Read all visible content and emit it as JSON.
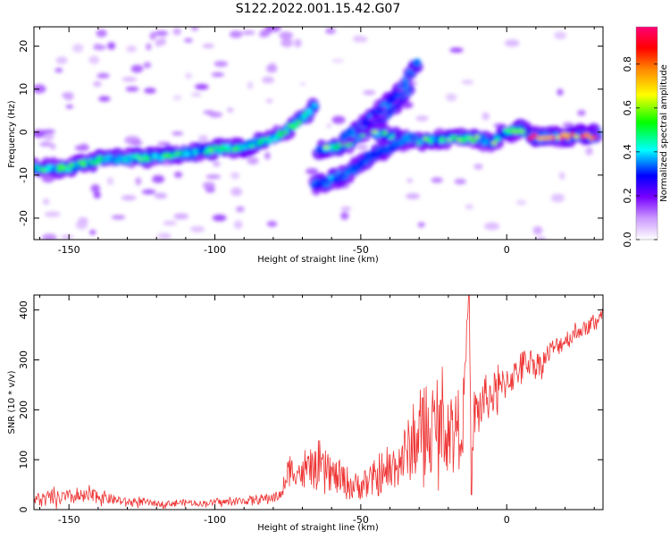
{
  "title": "S122.2022.001.15.42.G07",
  "chart_data": [
    {
      "type": "heatmap",
      "xlabel": "Height of straight line (km)",
      "ylabel": "Frequency (Hz)",
      "xlim": [
        -162,
        33
      ],
      "ylim": [
        -25,
        24.5
      ],
      "xticks": [
        -150,
        -100,
        -50,
        0
      ],
      "xtick_labels": [
        "-150",
        "-100",
        "-50",
        "0"
      ],
      "yticks": [
        -20,
        -10,
        0,
        10,
        20
      ],
      "ytick_labels": [
        "-20",
        "-10",
        "0",
        "10",
        "20"
      ],
      "colorbar": {
        "label": "Normalized spectral amplitude",
        "range": [
          0.0,
          0.97
        ],
        "ticks": [
          0.0,
          0.2,
          0.4,
          0.6,
          0.8
        ],
        "tick_labels": [
          "0.0",
          "0.2",
          "0.4",
          "0.6",
          "0.8"
        ],
        "colors": [
          "#ffffff",
          "#cc99ff",
          "#7700ff",
          "#0000ff",
          "#00ffff",
          "#00ff00",
          "#ffff00",
          "#ff8800",
          "#ff0000",
          "#ff0077"
        ]
      },
      "ridges": [
        {
          "x": [
            -162,
            -150,
            -140,
            -125,
            -110,
            -100,
            -90,
            -80,
            -72,
            -66
          ],
          "y": [
            -8.5,
            -8.3,
            -6.5,
            -6.0,
            -5.0,
            -4.0,
            -3.5,
            -1.5,
            2.0,
            6.0
          ],
          "amplitude": 0.5
        },
        {
          "x": [
            -64,
            -55,
            -48,
            -40,
            -30,
            -20,
            -10,
            -5,
            0,
            5,
            10,
            20,
            25,
            31
          ],
          "y": [
            -4.0,
            -3.0,
            0.5,
            -1.0,
            -2.0,
            -1.5,
            -1.5,
            -2.5,
            0.0,
            0.5,
            -1.0,
            -1.0,
            -0.5,
            -0.5
          ],
          "amplitude": 0.55
        },
        {
          "x": [
            8,
            30
          ],
          "y": [
            -1.0,
            -1.0
          ],
          "amplitude": 0.95
        },
        {
          "x": [
            -66,
            -55,
            -48,
            -40,
            -32
          ],
          "y": [
            -12.5,
            -10.0,
            -6.0,
            -3.5,
            -1.0
          ],
          "amplitude": 0.35
        },
        {
          "x": [
            -56,
            -48,
            -40,
            -34
          ],
          "y": [
            -1.0,
            1.5,
            5.0,
            10.0
          ],
          "amplitude": 0.3
        },
        {
          "x": [
            -50,
            -42,
            -35,
            -31
          ],
          "y": [
            1.0,
            6.0,
            11.0,
            16.0
          ],
          "amplitude": 0.25
        }
      ]
    },
    {
      "type": "line",
      "xlabel": "Height of straight line (km)",
      "ylabel": "SNR (10 * v/v)",
      "xlim": [
        -162,
        33
      ],
      "ylim": [
        0,
        430
      ],
      "xticks": [
        -150,
        -100,
        -50,
        0
      ],
      "xtick_labels": [
        "-150",
        "-100",
        "-50",
        "0"
      ],
      "yticks": [
        0,
        100,
        200,
        300,
        400
      ],
      "ytick_labels": [
        "0",
        "100",
        "200",
        "300",
        "400"
      ],
      "series": [
        {
          "color": "#ee3333",
          "x": [
            -162,
            -155,
            -150,
            -145,
            -140,
            -135,
            -130,
            -125,
            -120,
            -115,
            -110,
            -105,
            -100,
            -95,
            -90,
            -85,
            -80,
            -77,
            -75,
            -72,
            -70,
            -67,
            -65,
            -62,
            -60,
            -57,
            -55,
            -52,
            -50,
            -47,
            -45,
            -42,
            -40,
            -37,
            -35,
            -32,
            -30,
            -27,
            -25,
            -22,
            -20,
            -17,
            -15,
            -13,
            -12,
            -11,
            -10,
            -8,
            -5,
            -2,
            0,
            3,
            5,
            8,
            10,
            13,
            15,
            18,
            20,
            23,
            25,
            28,
            30,
            33
          ],
          "y": [
            20,
            22,
            25,
            25,
            28,
            20,
            15,
            15,
            12,
            12,
            15,
            12,
            15,
            15,
            18,
            20,
            25,
            30,
            75,
            80,
            70,
            85,
            75,
            80,
            70,
            60,
            55,
            45,
            50,
            55,
            60,
            65,
            80,
            95,
            110,
            130,
            150,
            150,
            160,
            170,
            160,
            170,
            180,
            430,
            80,
            200,
            190,
            220,
            230,
            240,
            260,
            270,
            290,
            300,
            290,
            300,
            320,
            330,
            340,
            350,
            360,
            365,
            375,
            395
          ],
          "noise": [
            15,
            15,
            15,
            15,
            15,
            10,
            8,
            8,
            6,
            6,
            6,
            6,
            6,
            8,
            8,
            10,
            10,
            10,
            30,
            30,
            30,
            40,
            40,
            40,
            35,
            35,
            35,
            30,
            30,
            35,
            35,
            35,
            45,
            50,
            60,
            70,
            80,
            80,
            80,
            80,
            80,
            70,
            70,
            0,
            0,
            60,
            60,
            50,
            45,
            40,
            35,
            30,
            30,
            25,
            25,
            25,
            20,
            20,
            20,
            20,
            15,
            15,
            15,
            15
          ]
        }
      ]
    }
  ]
}
